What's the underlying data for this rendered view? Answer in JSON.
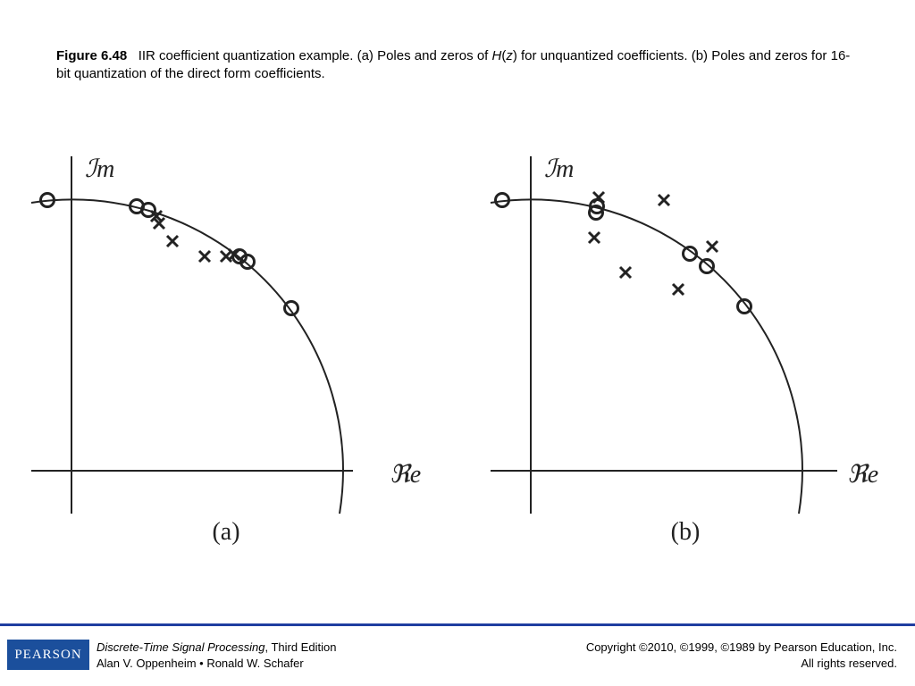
{
  "caption": {
    "label": "Figure 6.48",
    "before": "IIR coefficient quantization example. (a) Poles and zeros of",
    "func": "H",
    "open": "(",
    "arg": "z",
    "close": ")",
    "after": "for unquantized coefficients. (b) Poles and zeros for 16-bit quantization of the direct form coefficients."
  },
  "panels": [
    {
      "imag_label": "ℐm",
      "real_label": "ℜe",
      "label": "(a)"
    },
    {
      "imag_label": "ℐm",
      "real_label": "ℜe",
      "label": "(b)"
    }
  ],
  "footer": {
    "logo": "PEARSON",
    "book_title": "Discrete-Time Signal Processing",
    "edition": ", Third Edition",
    "authors": "Alan V. Oppenheim • Ronald W. Schafer",
    "copyright": "Copyright ©2010, ©1999, ©1989 by Pearson Education, Inc.",
    "rights": "All rights reserved."
  }
}
